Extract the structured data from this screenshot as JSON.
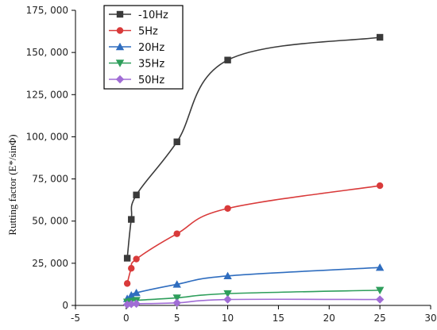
{
  "chart_data": {
    "type": "line",
    "title": "",
    "xlabel": "",
    "ylabel": "Rutting factor (E*/sinΦ)",
    "xlim": [
      -5,
      30
    ],
    "ylim": [
      0,
      175000
    ],
    "xticks": [
      -5,
      0,
      5,
      10,
      15,
      20,
      25,
      30
    ],
    "yticks": [
      0,
      25000,
      50000,
      75000,
      100000,
      125000,
      150000,
      175000
    ],
    "xtick_labels": [
      "-5",
      "0",
      "5",
      "10",
      "15",
      "20",
      "25",
      "30"
    ],
    "ytick_labels": [
      "0",
      "25, 000",
      "50, 000",
      "75, 000",
      "100, 000",
      "125, 000",
      "150, 000",
      "175, 000"
    ],
    "grid": false,
    "legend_position": "top-left",
    "x": [
      0.1,
      0.5,
      1,
      5,
      10,
      25
    ],
    "series": [
      {
        "name": "-10Hz",
        "color": "#3a3a3a",
        "marker": "square",
        "values": [
          28000,
          51000,
          65500,
          97000,
          145500,
          159000
        ]
      },
      {
        "name": "5Hz",
        "color": "#d93a3a",
        "marker": "circle",
        "values": [
          13000,
          22000,
          27500,
          42500,
          57500,
          71000
        ]
      },
      {
        "name": "20Hz",
        "color": "#2f6dbf",
        "marker": "triangle-up",
        "values": [
          4000,
          6000,
          7500,
          12500,
          17500,
          22500
        ]
      },
      {
        "name": "35Hz",
        "color": "#2e9e5b",
        "marker": "triangle-down",
        "values": [
          2000,
          2500,
          3000,
          4500,
          7000,
          9000
        ]
      },
      {
        "name": "50Hz",
        "color": "#a06cd5",
        "marker": "diamond",
        "values": [
          500,
          800,
          1000,
          1500,
          3500,
          3500
        ]
      }
    ]
  }
}
